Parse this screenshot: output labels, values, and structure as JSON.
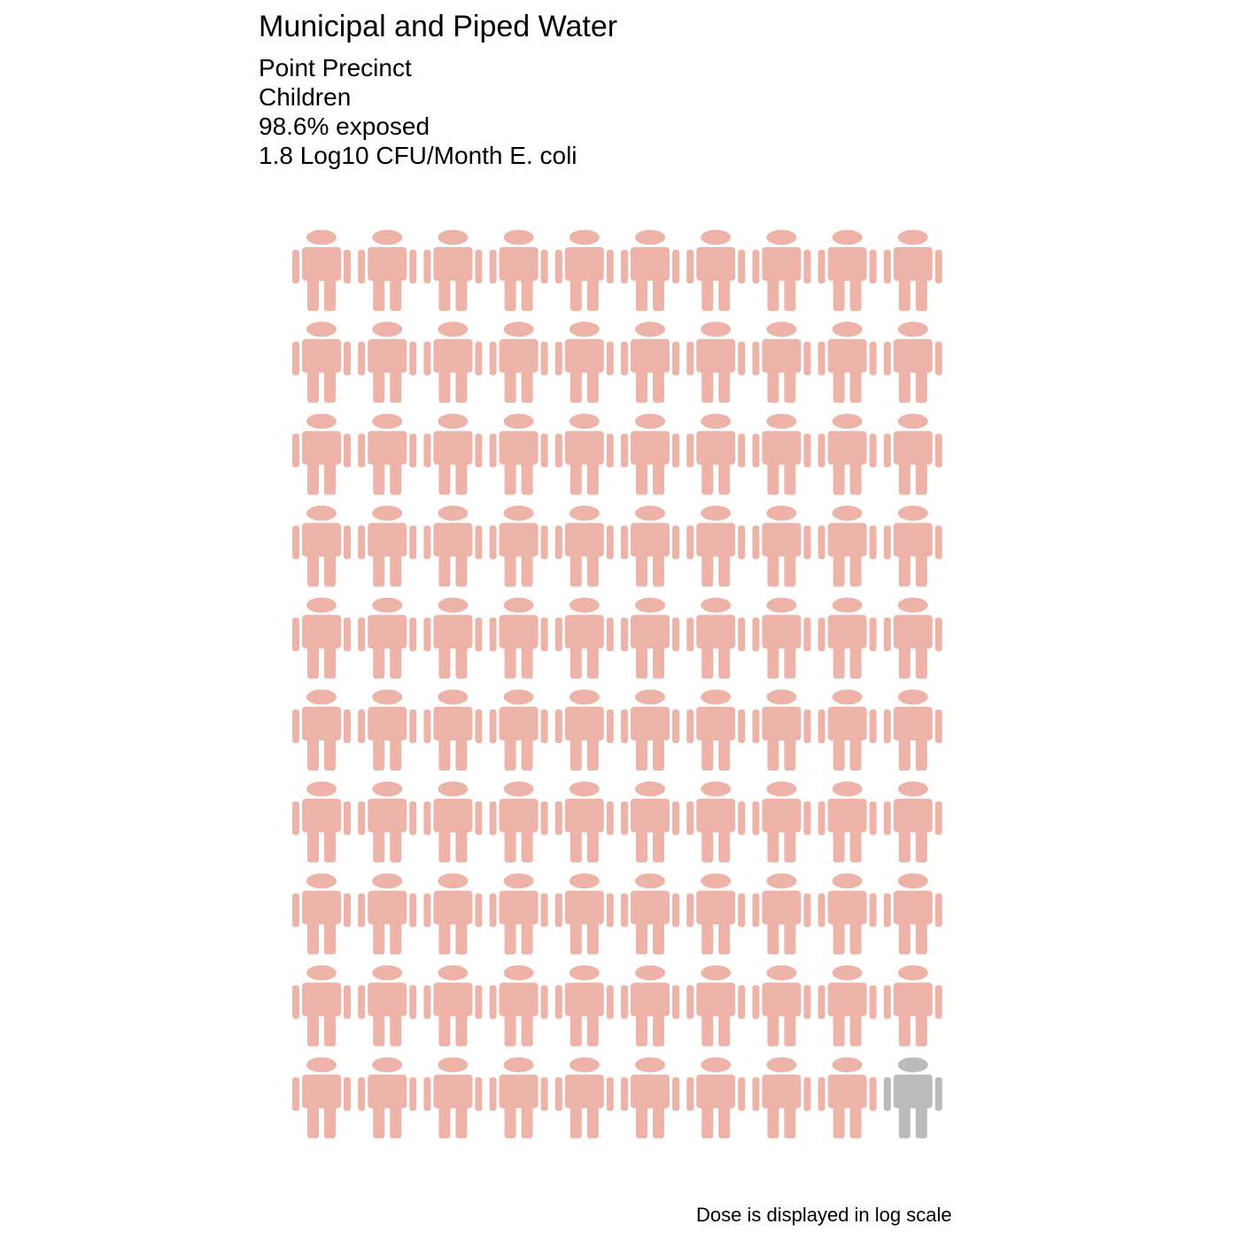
{
  "title": "Municipal and Piped Water",
  "subtitle": {
    "location": "Point Precinct",
    "population": "Children",
    "exposure": "98.6% exposed",
    "dose": "1.8 Log10 CFU/Month E. coli"
  },
  "caption": "Dose is displayed in log scale",
  "chart_data": {
    "type": "pictogram",
    "total_icons": 100,
    "grid": {
      "rows": 10,
      "columns": 10
    },
    "categories": [
      "exposed",
      "not exposed"
    ],
    "values": [
      99,
      1
    ],
    "percent_exposed": 98.6,
    "colors": {
      "exposed": "#EDB3A8",
      "not exposed": "#BBBBBB"
    },
    "icon": "person-icon"
  }
}
